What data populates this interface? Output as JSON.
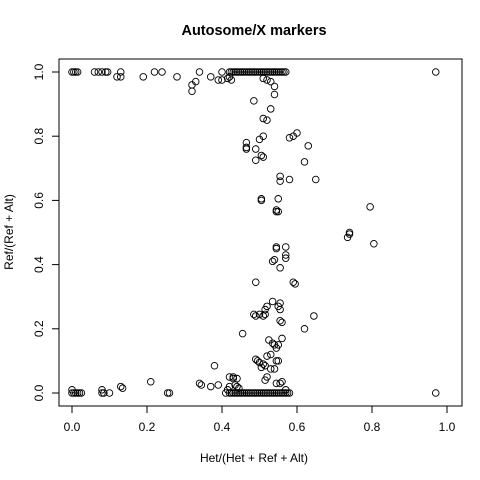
{
  "chart_data": {
    "type": "scatter",
    "title": "Autosome/X markers",
    "xlabel": "Het/(Het + Ref + Alt)",
    "ylabel": "Ref/(Ref + Alt)",
    "xlim": [
      0,
      1
    ],
    "ylim": [
      0,
      1
    ],
    "x_ticks": [
      0.0,
      0.2,
      0.4,
      0.6,
      0.8,
      1.0
    ],
    "x_tick_labels": [
      "0.0",
      "0.2",
      "0.4",
      "0.6",
      "0.8",
      "1.0"
    ],
    "y_ticks": [
      0.0,
      0.2,
      0.4,
      0.6,
      0.8,
      1.0
    ],
    "y_tick_labels": [
      "0.0",
      "0.2",
      "0.4",
      "0.6",
      "0.8",
      "1.0"
    ],
    "grid": false,
    "legend": "none",
    "marker": "open-circle",
    "color": "#000000",
    "points": [
      [
        0.0,
        1.0
      ],
      [
        0.005,
        1.0
      ],
      [
        0.01,
        1.0
      ],
      [
        0.015,
        1.0
      ],
      [
        0.06,
        1.0
      ],
      [
        0.07,
        1.0
      ],
      [
        0.08,
        1.0
      ],
      [
        0.09,
        1.0
      ],
      [
        0.095,
        1.0
      ],
      [
        0.12,
        0.985
      ],
      [
        0.13,
        0.985
      ],
      [
        0.13,
        1.0
      ],
      [
        0.19,
        0.985
      ],
      [
        0.22,
        1.0
      ],
      [
        0.24,
        1.0
      ],
      [
        0.28,
        0.985
      ],
      [
        0.32,
        0.94
      ],
      [
        0.32,
        0.96
      ],
      [
        0.33,
        0.97
      ],
      [
        0.34,
        1.0
      ],
      [
        0.37,
        0.985
      ],
      [
        0.39,
        0.975
      ],
      [
        0.4,
        0.975
      ],
      [
        0.415,
        0.98
      ],
      [
        0.42,
        0.985
      ],
      [
        0.425,
        0.975
      ],
      [
        0.4,
        1.0
      ],
      [
        0.42,
        1.0
      ],
      [
        0.425,
        1.0
      ],
      [
        0.43,
        1.0
      ],
      [
        0.435,
        1.0
      ],
      [
        0.44,
        1.0
      ],
      [
        0.445,
        1.0
      ],
      [
        0.45,
        1.0
      ],
      [
        0.455,
        1.0
      ],
      [
        0.46,
        1.0
      ],
      [
        0.465,
        1.0
      ],
      [
        0.47,
        1.0
      ],
      [
        0.475,
        1.0
      ],
      [
        0.48,
        1.0
      ],
      [
        0.485,
        1.0
      ],
      [
        0.49,
        1.0
      ],
      [
        0.495,
        1.0
      ],
      [
        0.5,
        1.0
      ],
      [
        0.505,
        1.0
      ],
      [
        0.51,
        1.0
      ],
      [
        0.515,
        1.0
      ],
      [
        0.52,
        1.0
      ],
      [
        0.525,
        1.0
      ],
      [
        0.53,
        1.0
      ],
      [
        0.535,
        1.0
      ],
      [
        0.54,
        1.0
      ],
      [
        0.545,
        1.0
      ],
      [
        0.55,
        1.0
      ],
      [
        0.555,
        1.0
      ],
      [
        0.56,
        1.0
      ],
      [
        0.565,
        1.0
      ],
      [
        0.57,
        1.0
      ],
      [
        0.51,
        0.98
      ],
      [
        0.52,
        0.975
      ],
      [
        0.53,
        0.97
      ],
      [
        0.54,
        0.955
      ],
      [
        0.54,
        0.93
      ],
      [
        0.485,
        0.91
      ],
      [
        0.53,
        0.885
      ],
      [
        0.51,
        0.855
      ],
      [
        0.52,
        0.85
      ],
      [
        0.59,
        0.8
      ],
      [
        0.58,
        0.795
      ],
      [
        0.6,
        0.81
      ],
      [
        0.5,
        0.79
      ],
      [
        0.51,
        0.8
      ],
      [
        0.465,
        0.78
      ],
      [
        0.465,
        0.765
      ],
      [
        0.465,
        0.76
      ],
      [
        0.49,
        0.76
      ],
      [
        0.49,
        0.725
      ],
      [
        0.505,
        0.74
      ],
      [
        0.51,
        0.735
      ],
      [
        0.63,
        0.77
      ],
      [
        0.62,
        0.72
      ],
      [
        0.555,
        0.675
      ],
      [
        0.555,
        0.66
      ],
      [
        0.58,
        0.665
      ],
      [
        0.65,
        0.665
      ],
      [
        0.505,
        0.605
      ],
      [
        0.505,
        0.6
      ],
      [
        0.55,
        0.605
      ],
      [
        0.545,
        0.57
      ],
      [
        0.545,
        0.565
      ],
      [
        0.55,
        0.565
      ],
      [
        0.74,
        0.5
      ],
      [
        0.74,
        0.495
      ],
      [
        0.735,
        0.485
      ],
      [
        0.795,
        0.58
      ],
      [
        0.805,
        0.465
      ],
      [
        0.545,
        0.455
      ],
      [
        0.545,
        0.45
      ],
      [
        0.57,
        0.455
      ],
      [
        0.57,
        0.43
      ],
      [
        0.57,
        0.42
      ],
      [
        0.54,
        0.415
      ],
      [
        0.535,
        0.41
      ],
      [
        0.555,
        0.39
      ],
      [
        0.59,
        0.345
      ],
      [
        0.595,
        0.34
      ],
      [
        0.49,
        0.345
      ],
      [
        0.535,
        0.285
      ],
      [
        0.555,
        0.28
      ],
      [
        0.55,
        0.27
      ],
      [
        0.52,
        0.27
      ],
      [
        0.515,
        0.26
      ],
      [
        0.5,
        0.245
      ],
      [
        0.51,
        0.24
      ],
      [
        0.515,
        0.245
      ],
      [
        0.485,
        0.245
      ],
      [
        0.49,
        0.24
      ],
      [
        0.555,
        0.26
      ],
      [
        0.555,
        0.225
      ],
      [
        0.56,
        0.22
      ],
      [
        0.645,
        0.24
      ],
      [
        0.62,
        0.2
      ],
      [
        0.455,
        0.185
      ],
      [
        0.525,
        0.165
      ],
      [
        0.535,
        0.155
      ],
      [
        0.54,
        0.15
      ],
      [
        0.55,
        0.15
      ],
      [
        0.545,
        0.14
      ],
      [
        0.56,
        0.17
      ],
      [
        0.53,
        0.12
      ],
      [
        0.52,
        0.115
      ],
      [
        0.545,
        0.1
      ],
      [
        0.55,
        0.1
      ],
      [
        0.495,
        0.1
      ],
      [
        0.49,
        0.105
      ],
      [
        0.5,
        0.095
      ],
      [
        0.51,
        0.09
      ],
      [
        0.505,
        0.08
      ],
      [
        0.515,
        0.085
      ],
      [
        0.53,
        0.075
      ],
      [
        0.54,
        0.075
      ],
      [
        0.52,
        0.05
      ],
      [
        0.515,
        0.04
      ],
      [
        0.545,
        0.03
      ],
      [
        0.555,
        0.03
      ],
      [
        0.56,
        0.035
      ],
      [
        0.57,
        0.01
      ],
      [
        0.38,
        0.085
      ],
      [
        0.42,
        0.05
      ],
      [
        0.43,
        0.05
      ],
      [
        0.43,
        0.045
      ],
      [
        0.44,
        0.045
      ],
      [
        0.435,
        0.025
      ],
      [
        0.44,
        0.02
      ],
      [
        0.445,
        0.015
      ],
      [
        0.415,
        0.01
      ],
      [
        0.42,
        0.02
      ],
      [
        0.42,
        0.0
      ],
      [
        0.425,
        0.0
      ],
      [
        0.43,
        0.0
      ],
      [
        0.435,
        0.0
      ],
      [
        0.44,
        0.0
      ],
      [
        0.445,
        0.0
      ],
      [
        0.45,
        0.0
      ],
      [
        0.455,
        0.0
      ],
      [
        0.46,
        0.0
      ],
      [
        0.465,
        0.0
      ],
      [
        0.47,
        0.0
      ],
      [
        0.475,
        0.0
      ],
      [
        0.48,
        0.0
      ],
      [
        0.485,
        0.0
      ],
      [
        0.49,
        0.0
      ],
      [
        0.495,
        0.0
      ],
      [
        0.5,
        0.0
      ],
      [
        0.505,
        0.0
      ],
      [
        0.51,
        0.0
      ],
      [
        0.515,
        0.0
      ],
      [
        0.52,
        0.0
      ],
      [
        0.525,
        0.0
      ],
      [
        0.53,
        0.0
      ],
      [
        0.535,
        0.0
      ],
      [
        0.54,
        0.0
      ],
      [
        0.545,
        0.0
      ],
      [
        0.55,
        0.0
      ],
      [
        0.555,
        0.0
      ],
      [
        0.56,
        0.0
      ],
      [
        0.565,
        0.0
      ],
      [
        0.57,
        0.0
      ],
      [
        0.575,
        0.0
      ],
      [
        0.58,
        0.0
      ],
      [
        0.0,
        0.01
      ],
      [
        0.0,
        0.0
      ],
      [
        0.005,
        0.0
      ],
      [
        0.01,
        0.0
      ],
      [
        0.015,
        0.0
      ],
      [
        0.02,
        0.0
      ],
      [
        0.025,
        0.0
      ],
      [
        0.08,
        0.0
      ],
      [
        0.08,
        0.01
      ],
      [
        0.085,
        0.0
      ],
      [
        0.1,
        0.0
      ],
      [
        0.13,
        0.02
      ],
      [
        0.135,
        0.015
      ],
      [
        0.21,
        0.035
      ],
      [
        0.255,
        0.0
      ],
      [
        0.26,
        0.0
      ],
      [
        0.34,
        0.03
      ],
      [
        0.345,
        0.025
      ],
      [
        0.37,
        0.02
      ],
      [
        0.39,
        0.025
      ],
      [
        0.41,
        0.0
      ],
      [
        0.97,
        1.0
      ],
      [
        0.97,
        0.0
      ]
    ]
  }
}
